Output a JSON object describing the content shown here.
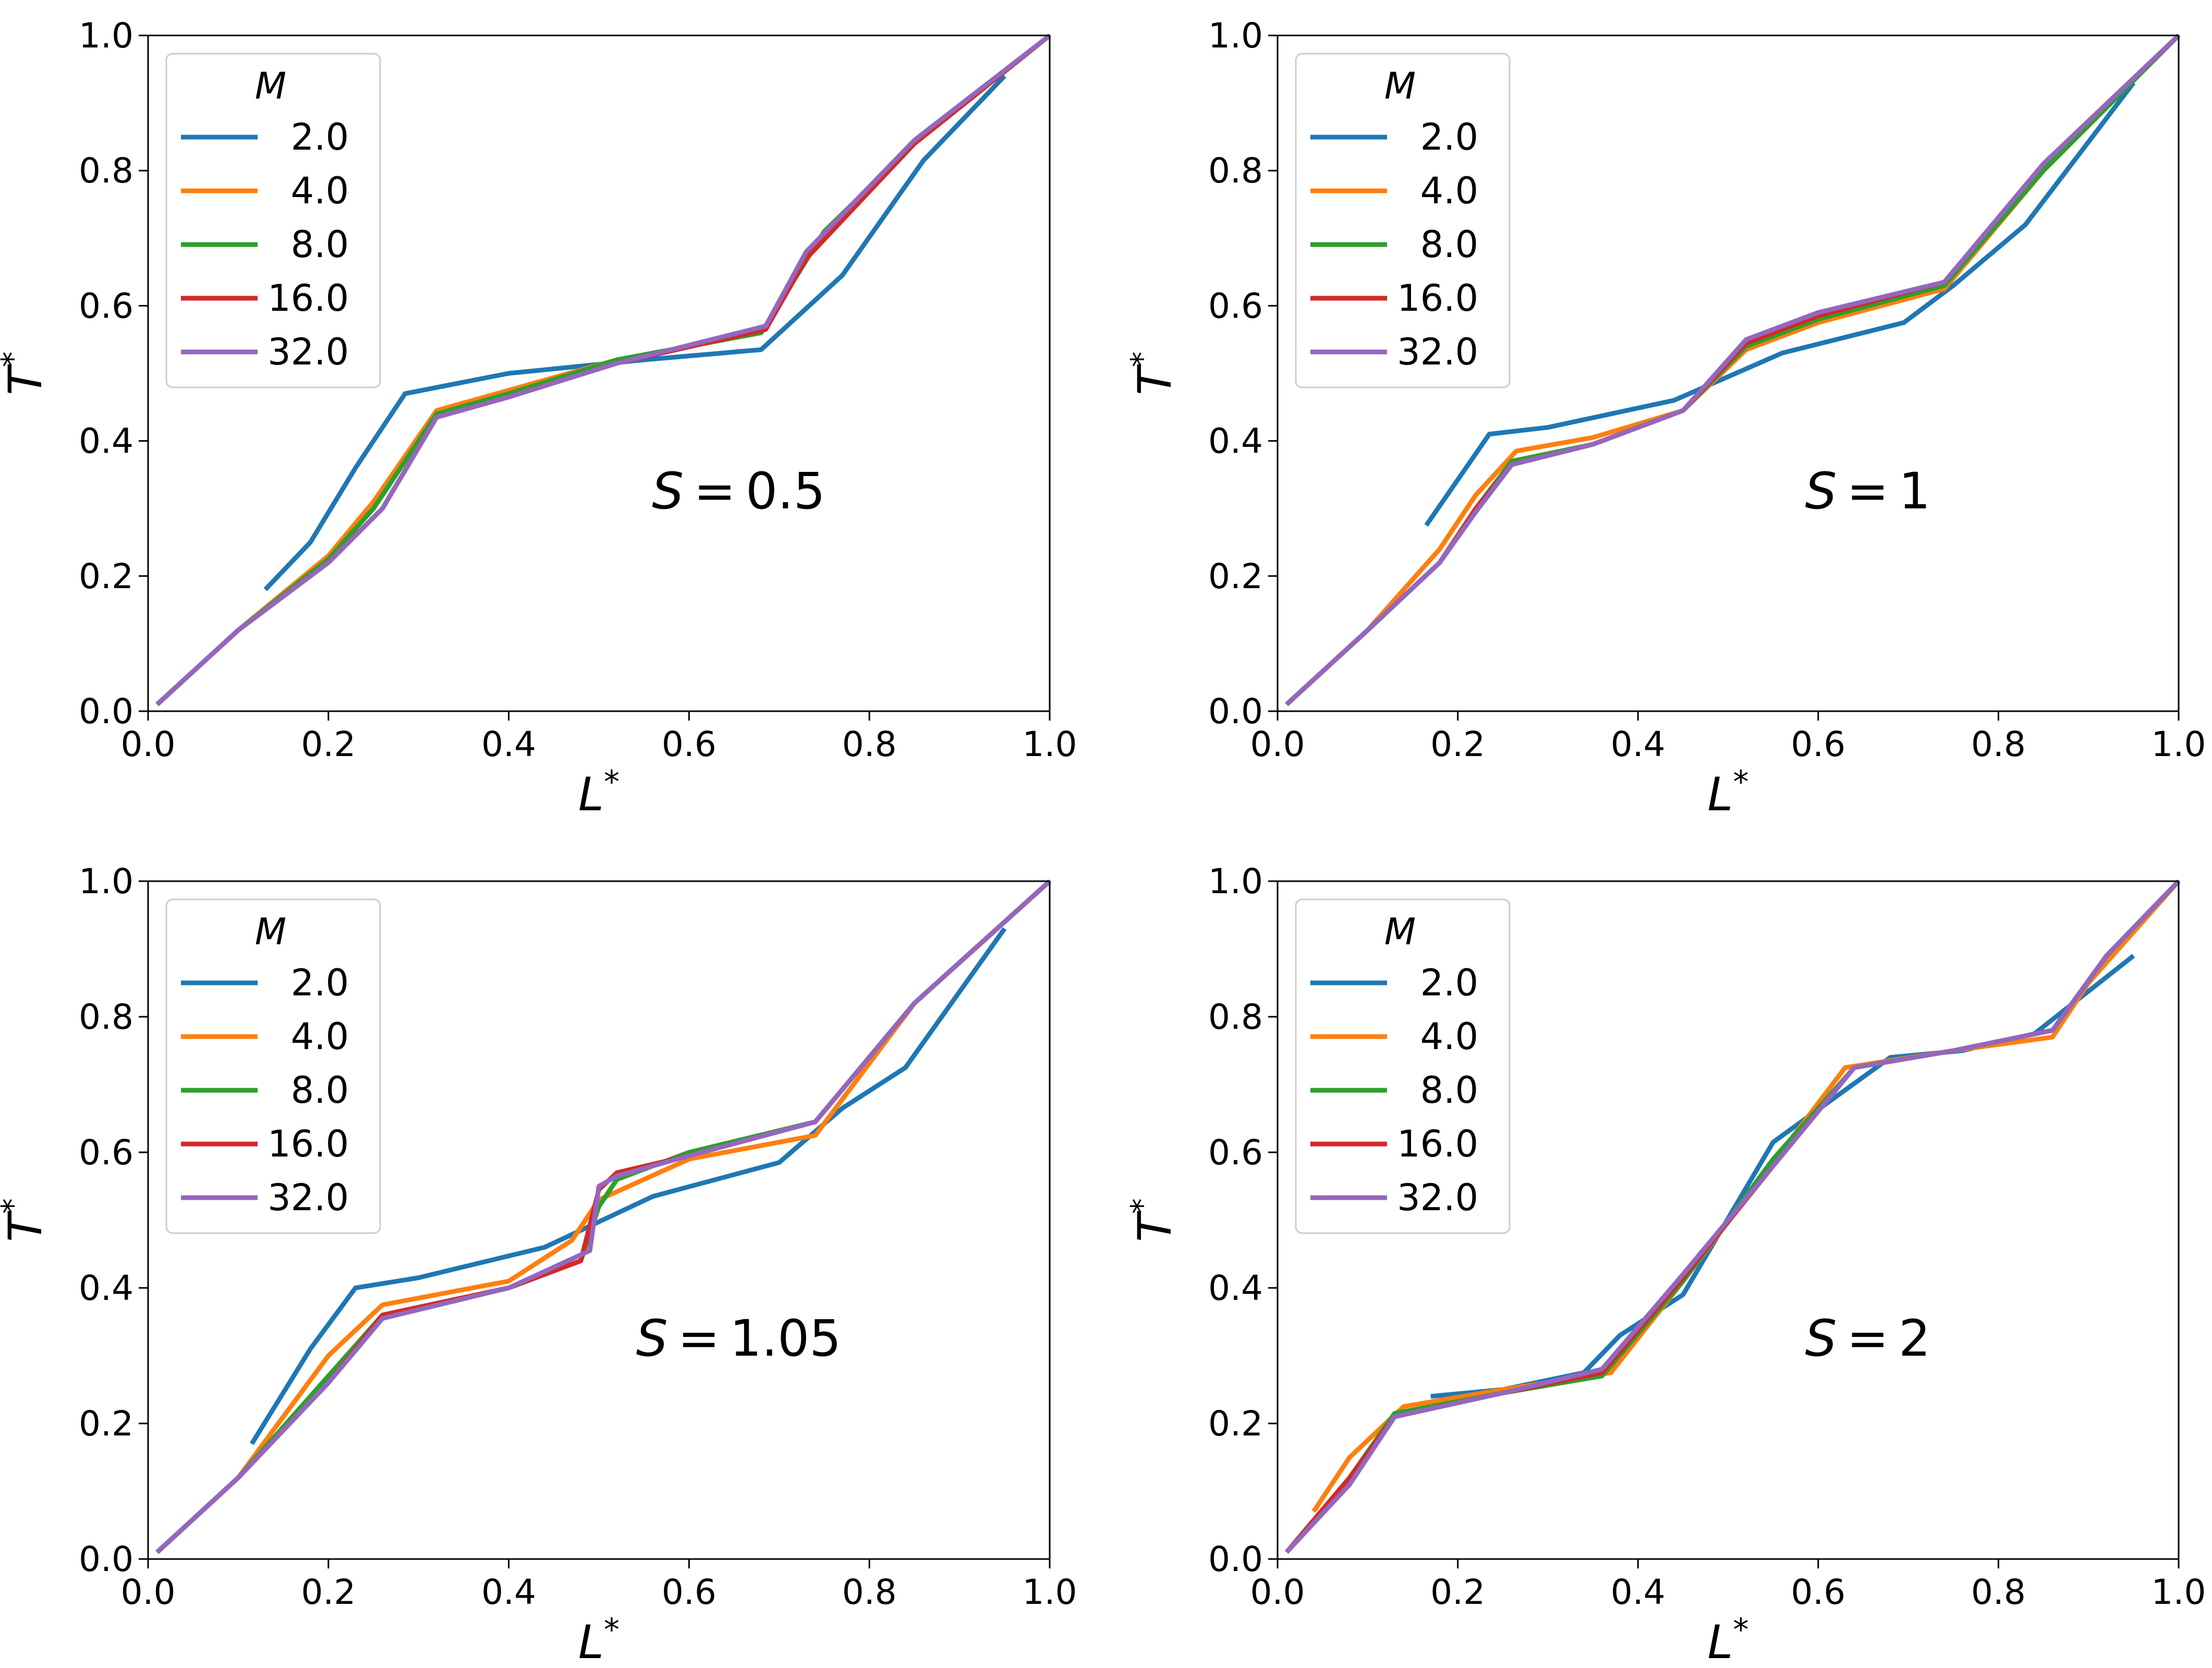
{
  "figure": {
    "legend_title": "M",
    "x_axis_label": "L",
    "y_axis_label": "T",
    "axis_label_superscript": "*",
    "s_prefix": "S",
    "x_ticks": [
      "0.0",
      "0.2",
      "0.4",
      "0.6",
      "0.8",
      "1.0"
    ],
    "y_ticks": [
      "0.0",
      "0.2",
      "0.4",
      "0.6",
      "0.8",
      "1.0"
    ]
  },
  "colors": {
    "2.0": "#1f77b4",
    "4.0": "#ff7f0e",
    "8.0": "#2ca02c",
    "16.0": "#d62728",
    "32.0": "#9467bd"
  },
  "chart_data": [
    {
      "type": "line",
      "panel": "top-left",
      "annotation": "S = 0.5",
      "s_value": "0.5",
      "xlabel": "L*",
      "ylabel": "T*",
      "xlim": [
        0,
        1
      ],
      "ylim": [
        0,
        1
      ],
      "legend": {
        "title": "M",
        "position": "top-left"
      },
      "series": [
        {
          "name": "2.0",
          "x": [
            0.13,
            0.18,
            0.23,
            0.285,
            0.4,
            0.55,
            0.68,
            0.77,
            0.86,
            0.95
          ],
          "y": [
            0.18,
            0.25,
            0.36,
            0.47,
            0.5,
            0.52,
            0.535,
            0.645,
            0.815,
            0.94
          ]
        },
        {
          "name": "4.0",
          "x": [
            0.01,
            0.1,
            0.2,
            0.25,
            0.32,
            0.4,
            0.52,
            0.68,
            0.75,
            0.85,
            1.0
          ],
          "y": [
            0.01,
            0.12,
            0.23,
            0.31,
            0.445,
            0.475,
            0.52,
            0.56,
            0.71,
            0.84,
            1.0
          ]
        },
        {
          "name": "8.0",
          "x": [
            0.01,
            0.1,
            0.2,
            0.25,
            0.32,
            0.4,
            0.52,
            0.68,
            0.75,
            0.85,
            1.0
          ],
          "y": [
            0.01,
            0.12,
            0.225,
            0.3,
            0.44,
            0.47,
            0.52,
            0.56,
            0.71,
            0.84,
            1.0
          ]
        },
        {
          "name": "16.0",
          "x": [
            0.01,
            0.1,
            0.2,
            0.26,
            0.32,
            0.4,
            0.52,
            0.685,
            0.73,
            0.85,
            1.0
          ],
          "y": [
            0.01,
            0.12,
            0.22,
            0.3,
            0.435,
            0.465,
            0.515,
            0.565,
            0.67,
            0.84,
            1.0
          ]
        },
        {
          "name": "32.0",
          "x": [
            0.01,
            0.1,
            0.2,
            0.26,
            0.32,
            0.4,
            0.52,
            0.685,
            0.73,
            0.85,
            1.0
          ],
          "y": [
            0.01,
            0.12,
            0.22,
            0.3,
            0.435,
            0.465,
            0.515,
            0.57,
            0.68,
            0.845,
            1.0
          ]
        }
      ]
    },
    {
      "type": "line",
      "panel": "top-right",
      "annotation": "S = 1",
      "s_value": "1",
      "xlabel": "L*",
      "ylabel": "T*",
      "xlim": [
        0,
        1
      ],
      "ylim": [
        0,
        1
      ],
      "legend": {
        "title": "M",
        "position": "top-left"
      },
      "series": [
        {
          "name": "2.0",
          "x": [
            0.165,
            0.235,
            0.3,
            0.44,
            0.56,
            0.695,
            0.75,
            0.83,
            0.95
          ],
          "y": [
            0.275,
            0.41,
            0.42,
            0.46,
            0.53,
            0.575,
            0.63,
            0.72,
            0.93
          ]
        },
        {
          "name": "4.0",
          "x": [
            0.01,
            0.1,
            0.18,
            0.22,
            0.265,
            0.35,
            0.45,
            0.52,
            0.6,
            0.74,
            0.85,
            1.0
          ],
          "y": [
            0.01,
            0.12,
            0.24,
            0.32,
            0.385,
            0.405,
            0.445,
            0.535,
            0.575,
            0.625,
            0.8,
            1.0
          ]
        },
        {
          "name": "8.0",
          "x": [
            0.01,
            0.1,
            0.18,
            0.22,
            0.26,
            0.35,
            0.45,
            0.52,
            0.6,
            0.74,
            0.85,
            1.0
          ],
          "y": [
            0.01,
            0.12,
            0.22,
            0.3,
            0.37,
            0.395,
            0.445,
            0.54,
            0.58,
            0.63,
            0.8,
            1.0
          ]
        },
        {
          "name": "16.0",
          "x": [
            0.01,
            0.1,
            0.18,
            0.22,
            0.26,
            0.35,
            0.45,
            0.52,
            0.6,
            0.74,
            0.85,
            1.0
          ],
          "y": [
            0.01,
            0.12,
            0.22,
            0.3,
            0.365,
            0.395,
            0.445,
            0.545,
            0.585,
            0.635,
            0.81,
            1.0
          ]
        },
        {
          "name": "32.0",
          "x": [
            0.01,
            0.1,
            0.18,
            0.22,
            0.26,
            0.35,
            0.45,
            0.52,
            0.6,
            0.74,
            0.85,
            1.0
          ],
          "y": [
            0.01,
            0.12,
            0.22,
            0.295,
            0.365,
            0.395,
            0.445,
            0.55,
            0.59,
            0.635,
            0.81,
            1.0
          ]
        }
      ]
    },
    {
      "type": "line",
      "panel": "bottom-left",
      "annotation": "S = 1.05",
      "s_value": "1.05",
      "xlabel": "L*",
      "ylabel": "T*",
      "xlim": [
        0,
        1
      ],
      "ylim": [
        0,
        1
      ],
      "legend": {
        "title": "M",
        "position": "top-left"
      },
      "series": [
        {
          "name": "2.0",
          "x": [
            0.115,
            0.18,
            0.23,
            0.3,
            0.44,
            0.56,
            0.7,
            0.77,
            0.84,
            0.95
          ],
          "y": [
            0.17,
            0.31,
            0.4,
            0.415,
            0.46,
            0.535,
            0.585,
            0.665,
            0.725,
            0.93
          ]
        },
        {
          "name": "4.0",
          "x": [
            0.01,
            0.1,
            0.2,
            0.26,
            0.4,
            0.47,
            0.5,
            0.6,
            0.74,
            0.85,
            1.0
          ],
          "y": [
            0.01,
            0.12,
            0.3,
            0.375,
            0.41,
            0.47,
            0.53,
            0.59,
            0.625,
            0.82,
            1.0
          ]
        },
        {
          "name": "8.0",
          "x": [
            0.01,
            0.1,
            0.2,
            0.26,
            0.4,
            0.48,
            0.5,
            0.52,
            0.6,
            0.74,
            0.85,
            1.0
          ],
          "y": [
            0.01,
            0.12,
            0.27,
            0.36,
            0.4,
            0.44,
            0.52,
            0.56,
            0.6,
            0.645,
            0.82,
            1.0
          ]
        },
        {
          "name": "16.0",
          "x": [
            0.01,
            0.1,
            0.2,
            0.26,
            0.4,
            0.48,
            0.5,
            0.52,
            0.6,
            0.74,
            0.85,
            1.0
          ],
          "y": [
            0.01,
            0.12,
            0.26,
            0.36,
            0.4,
            0.44,
            0.545,
            0.57,
            0.595,
            0.645,
            0.82,
            1.0
          ]
        },
        {
          "name": "32.0",
          "x": [
            0.01,
            0.1,
            0.2,
            0.26,
            0.4,
            0.49,
            0.5,
            0.52,
            0.6,
            0.74,
            0.85,
            1.0
          ],
          "y": [
            0.01,
            0.12,
            0.26,
            0.355,
            0.4,
            0.455,
            0.55,
            0.565,
            0.595,
            0.645,
            0.82,
            1.0
          ]
        }
      ]
    },
    {
      "type": "line",
      "panel": "bottom-right",
      "annotation": "S = 2",
      "s_value": "2",
      "xlabel": "L*",
      "ylabel": "T*",
      "xlim": [
        0,
        1
      ],
      "ylim": [
        0,
        1
      ],
      "legend": {
        "title": "M",
        "position": "top-left"
      },
      "series": [
        {
          "name": "2.0",
          "x": [
            0.17,
            0.25,
            0.34,
            0.38,
            0.45,
            0.55,
            0.68,
            0.76,
            0.84,
            0.95
          ],
          "y": [
            0.24,
            0.25,
            0.275,
            0.33,
            0.39,
            0.615,
            0.74,
            0.75,
            0.775,
            0.89
          ]
        },
        {
          "name": "4.0",
          "x": [
            0.04,
            0.08,
            0.14,
            0.25,
            0.37,
            0.45,
            0.63,
            0.75,
            0.86,
            0.9,
            1.0
          ],
          "y": [
            0.07,
            0.15,
            0.225,
            0.25,
            0.275,
            0.41,
            0.725,
            0.75,
            0.77,
            0.85,
            1.0
          ]
        },
        {
          "name": "8.0",
          "x": [
            0.01,
            0.08,
            0.13,
            0.25,
            0.36,
            0.45,
            0.55,
            0.64,
            0.75,
            0.86,
            0.92,
            1.0
          ],
          "y": [
            0.01,
            0.12,
            0.215,
            0.245,
            0.27,
            0.41,
            0.59,
            0.725,
            0.75,
            0.78,
            0.89,
            1.0
          ]
        },
        {
          "name": "16.0",
          "x": [
            0.01,
            0.08,
            0.13,
            0.25,
            0.36,
            0.45,
            0.55,
            0.64,
            0.75,
            0.86,
            0.92,
            1.0
          ],
          "y": [
            0.01,
            0.12,
            0.21,
            0.245,
            0.275,
            0.415,
            0.58,
            0.725,
            0.75,
            0.78,
            0.89,
            1.0
          ]
        },
        {
          "name": "32.0",
          "x": [
            0.01,
            0.08,
            0.13,
            0.25,
            0.36,
            0.45,
            0.55,
            0.64,
            0.75,
            0.86,
            0.92,
            1.0
          ],
          "y": [
            0.01,
            0.11,
            0.21,
            0.245,
            0.28,
            0.42,
            0.58,
            0.725,
            0.75,
            0.78,
            0.89,
            1.0
          ]
        }
      ]
    }
  ]
}
